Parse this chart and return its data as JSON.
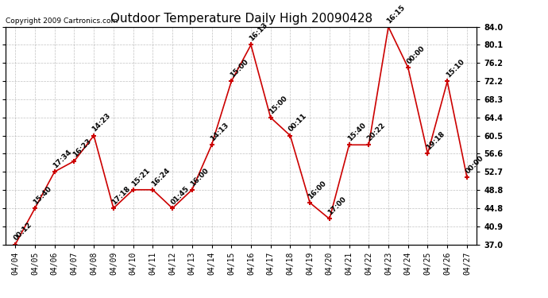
{
  "title": "Outdoor Temperature Daily High 20090428",
  "copyright": "Copyright 2009 Cartronics.com",
  "x_labels": [
    "04/04",
    "04/05",
    "04/06",
    "04/07",
    "04/08",
    "04/09",
    "04/10",
    "04/11",
    "04/12",
    "04/13",
    "04/14",
    "04/15",
    "04/16",
    "04/17",
    "04/18",
    "04/19",
    "04/20",
    "04/21",
    "04/22",
    "04/23",
    "04/24",
    "04/25",
    "04/26",
    "04/27"
  ],
  "y_values": [
    37.0,
    44.8,
    52.7,
    55.0,
    60.5,
    44.8,
    48.8,
    48.8,
    44.8,
    48.8,
    58.5,
    72.2,
    80.1,
    64.4,
    60.5,
    46.0,
    42.5,
    58.5,
    58.5,
    84.0,
    75.2,
    56.6,
    72.2,
    51.5
  ],
  "point_labels": [
    "00:12",
    "15:40",
    "17:34",
    "16:23",
    "14:23",
    "17:18",
    "15:21",
    "16:24",
    "01:45",
    "16:00",
    "14:13",
    "15:00",
    "16:13",
    "15:00",
    "00:11",
    "16:00",
    "17:00",
    "15:40",
    "20:22",
    "16:15",
    "00:00",
    "19:18",
    "15:10",
    "00:00"
  ],
  "ylim_min": 37.0,
  "ylim_max": 84.0,
  "yticks": [
    37.0,
    40.9,
    44.8,
    48.8,
    52.7,
    56.6,
    60.5,
    64.4,
    68.3,
    72.2,
    76.2,
    80.1,
    84.0
  ],
  "line_color": "#cc0000",
  "marker_color": "#cc0000",
  "bg_color": "#ffffff",
  "grid_color": "#999999",
  "title_fontsize": 11,
  "label_fontsize": 6.5,
  "tick_fontsize": 7,
  "copyright_fontsize": 6.5
}
